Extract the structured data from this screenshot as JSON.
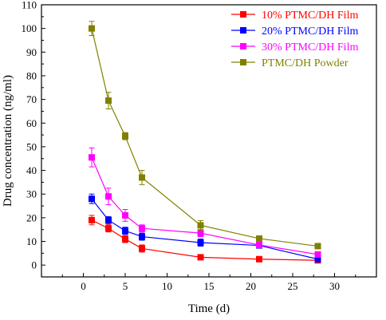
{
  "chart_data": {
    "type": "line",
    "title": "",
    "xlabel": "Time (d)",
    "ylabel": "Drug concentration (ng/ml)",
    "xlim": [
      -5,
      35
    ],
    "ylim": [
      -5,
      110
    ],
    "xticks": [
      0,
      5,
      10,
      15,
      20,
      25,
      30
    ],
    "yticks": [
      0,
      10,
      20,
      30,
      40,
      50,
      60,
      70,
      80,
      90,
      100,
      110
    ],
    "grid": false,
    "legend_position": "top-right",
    "series": [
      {
        "name": "10% PTMC/DH Film",
        "color": "#ff0000",
        "x": [
          1,
          3,
          5,
          7,
          14,
          21,
          28
        ],
        "y": [
          19,
          15.5,
          11,
          7,
          3.3,
          2.5,
          2
        ],
        "err": [
          2,
          1.5,
          1.5,
          1.5,
          0.8,
          0.6,
          0.5
        ]
      },
      {
        "name": "20% PTMC/DH Film",
        "color": "#0000ff",
        "x": [
          1,
          3,
          5,
          7,
          14,
          21,
          28
        ],
        "y": [
          28,
          19,
          14.5,
          12,
          9.5,
          8.3,
          2.5
        ],
        "err": [
          2,
          1.5,
          1.5,
          1.5,
          1.5,
          1,
          0.8
        ]
      },
      {
        "name": "30% PTMC/DH Film",
        "color": "#ff00ff",
        "x": [
          1,
          3,
          5,
          7,
          14,
          21,
          28
        ],
        "y": [
          45.5,
          29,
          21,
          15.5,
          13.5,
          8.5,
          4.5
        ],
        "err": [
          4,
          3.5,
          2.5,
          1.5,
          1.5,
          1,
          0.8
        ]
      },
      {
        "name": "PTMC/DH Powder",
        "color": "#808000",
        "x": [
          1,
          3,
          5,
          7,
          14,
          21,
          28
        ],
        "y": [
          100,
          69.5,
          54.5,
          37,
          16.8,
          11.2,
          8
        ],
        "err": [
          3,
          3.5,
          1.5,
          3,
          2,
          1,
          0.8
        ]
      }
    ]
  }
}
